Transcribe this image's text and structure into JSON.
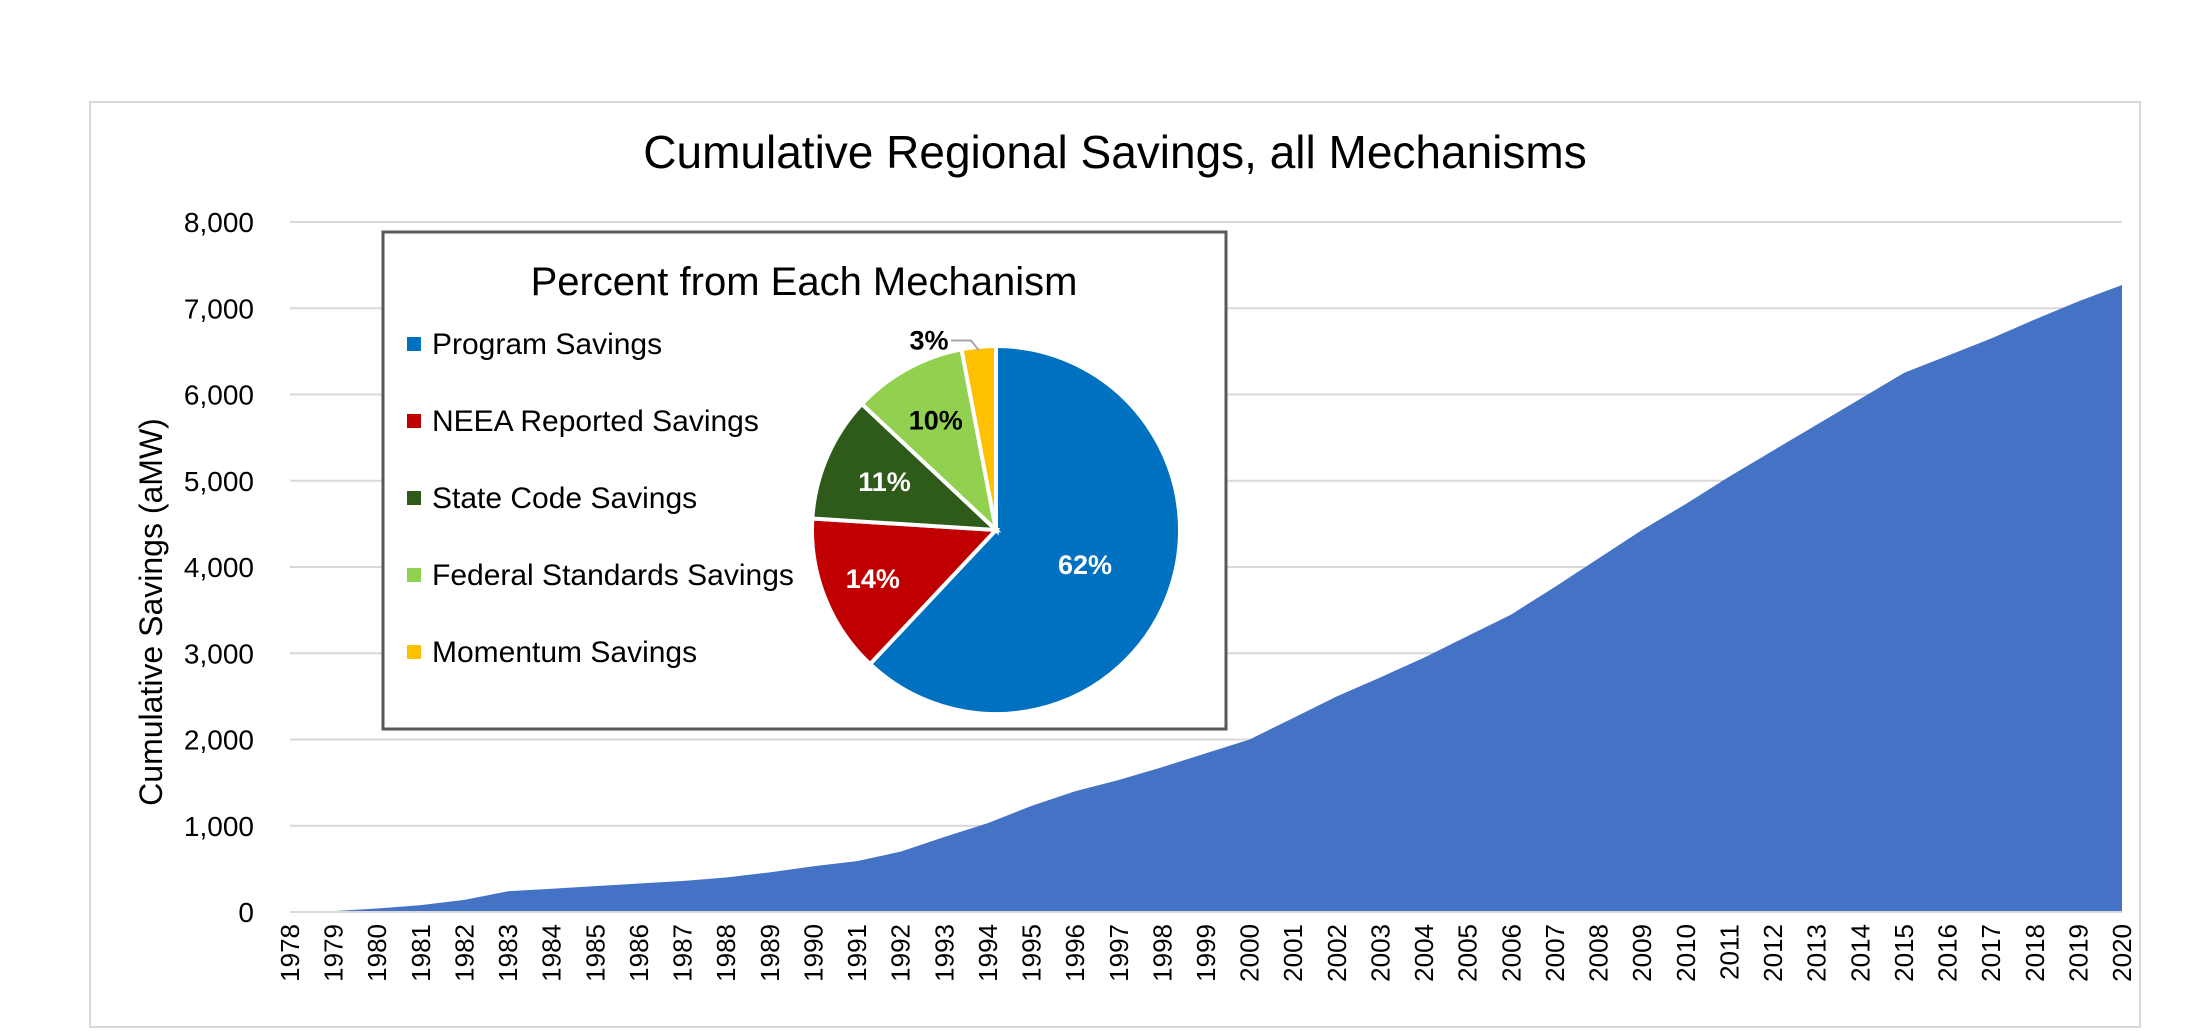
{
  "chart_data": [
    {
      "type": "area",
      "title": "Cumulative Regional Savings, all Mechanisms",
      "xlabel": "",
      "ylabel": "Cumulative Savings (aMW)",
      "ylim": [
        0,
        8000
      ],
      "yticks": [
        "0",
        "1,000",
        "2,000",
        "3,000",
        "4,000",
        "5,000",
        "6,000",
        "7,000",
        "8,000"
      ],
      "grid": true,
      "color": "#4472C4",
      "x": [
        "1978",
        "1979",
        "1980",
        "1981",
        "1982",
        "1983",
        "1984",
        "1985",
        "1986",
        "1987",
        "1988",
        "1989",
        "1990",
        "1991",
        "1992",
        "1993",
        "1994",
        "1995",
        "1996",
        "1997",
        "1998",
        "1999",
        "2000",
        "2001",
        "2002",
        "2003",
        "2004",
        "2005",
        "2006",
        "2007",
        "2008",
        "2009",
        "2010",
        "2011",
        "2012",
        "2013",
        "2014",
        "2015",
        "2016",
        "2017",
        "2018",
        "2019",
        "2020"
      ],
      "values": [
        0,
        10,
        40,
        80,
        140,
        240,
        270,
        300,
        330,
        360,
        400,
        460,
        530,
        590,
        700,
        870,
        1030,
        1230,
        1400,
        1530,
        1680,
        1840,
        2000,
        2250,
        2500,
        2720,
        2950,
        3200,
        3450,
        3770,
        4100,
        4430,
        4730,
        5050,
        5350,
        5650,
        5950,
        6250,
        6450,
        6650,
        6870,
        7080,
        7270
      ]
    },
    {
      "type": "pie",
      "title": "Percent from Each Mechanism",
      "legend_position": "left",
      "slices": [
        {
          "label": "Program Savings",
          "value": 62,
          "text": "62%",
          "color": "#0070C0"
        },
        {
          "label": "NEEA Reported Savings",
          "value": 14,
          "text": "14%",
          "color": "#C00000"
        },
        {
          "label": "State Code Savings",
          "value": 11,
          "text": "11%",
          "color": "#2E5B1A"
        },
        {
          "label": "Federal Standards Savings",
          "value": 10,
          "text": "10%",
          "color": "#92D050"
        },
        {
          "label": "Momentum Savings",
          "value": 3,
          "text": "3%",
          "color": "#FFC000"
        }
      ]
    }
  ]
}
